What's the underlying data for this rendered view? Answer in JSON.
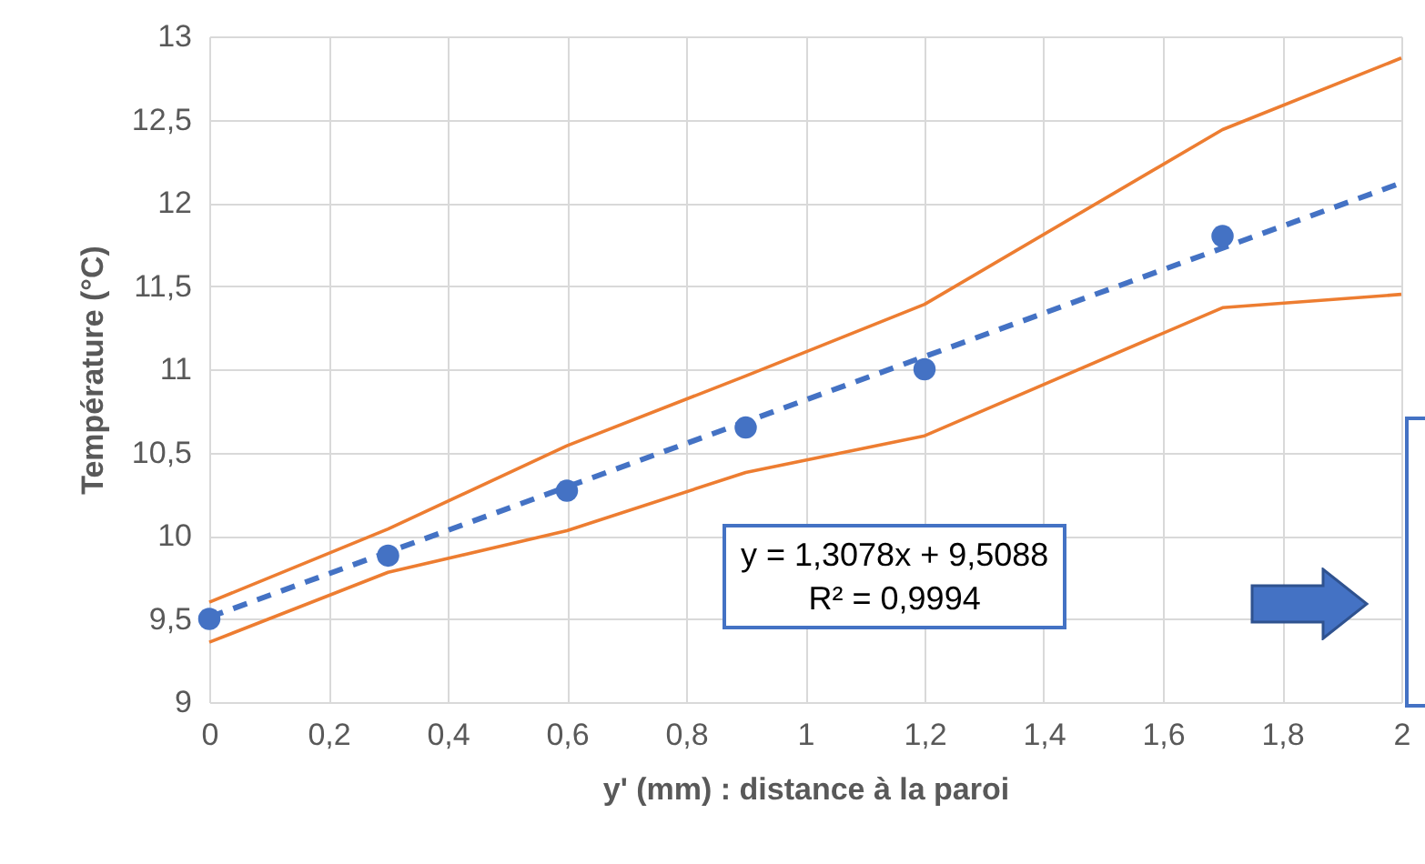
{
  "chart_data": {
    "type": "scatter",
    "xlabel": "y' (mm) : distance à la paroi",
    "ylabel": "Température (°C)",
    "series": [
      {
        "type": "line",
        "color": "#ed7d31",
        "x": [
          0,
          0.3,
          0.6,
          0.9,
          1.2,
          1.7,
          2.0
        ],
        "values": [
          9.6,
          10.04,
          10.54,
          10.96,
          11.39,
          12.44,
          12.87
        ]
      },
      {
        "type": "line",
        "color": "#ed7d31",
        "x": [
          0,
          0.3,
          0.6,
          0.9,
          1.2,
          1.7,
          2.0
        ],
        "values": [
          9.36,
          9.78,
          10.03,
          10.38,
          10.6,
          11.37,
          11.45
        ]
      },
      {
        "type": "line",
        "color": "#4472c4",
        "line_style": "dashed",
        "x": [
          0,
          2
        ],
        "values": [
          9.51,
          12.12
        ]
      },
      {
        "color": "#4472c4",
        "marker": "circle",
        "x": [
          0,
          0.3,
          0.6,
          0.9,
          1.2,
          1.7
        ],
        "values": [
          9.5,
          9.88,
          10.27,
          10.65,
          11.0,
          11.8
        ]
      }
    ],
    "xlim": [
      0,
      2
    ],
    "ylim": [
      9,
      13
    ],
    "xticks": [
      0,
      {
        "value": 0.2,
        "label": "0,2"
      },
      {
        "value": 0.4,
        "label": "0,4"
      },
      {
        "value": 0.6,
        "label": "0,6"
      },
      {
        "value": 0.8,
        "label": "0,8"
      },
      1,
      {
        "value": 1.2,
        "label": "1,2"
      },
      {
        "value": 1.4,
        "label": "1,4"
      },
      {
        "value": 1.6,
        "label": "1,6"
      },
      {
        "value": 1.8,
        "label": "1,8"
      },
      2
    ],
    "yticks": [
      9,
      {
        "value": 9.5,
        "label": "9,5"
      },
      10,
      {
        "value": 10.5,
        "label": "10,5"
      },
      11,
      {
        "value": 11.5,
        "label": "11,5"
      },
      12,
      {
        "value": 12.5,
        "label": "12,5"
      },
      13
    ],
    "annotations": [
      "y = 1,3078x + 9,5088",
      "R² = 0,9994"
    ],
    "grid": true
  }
}
